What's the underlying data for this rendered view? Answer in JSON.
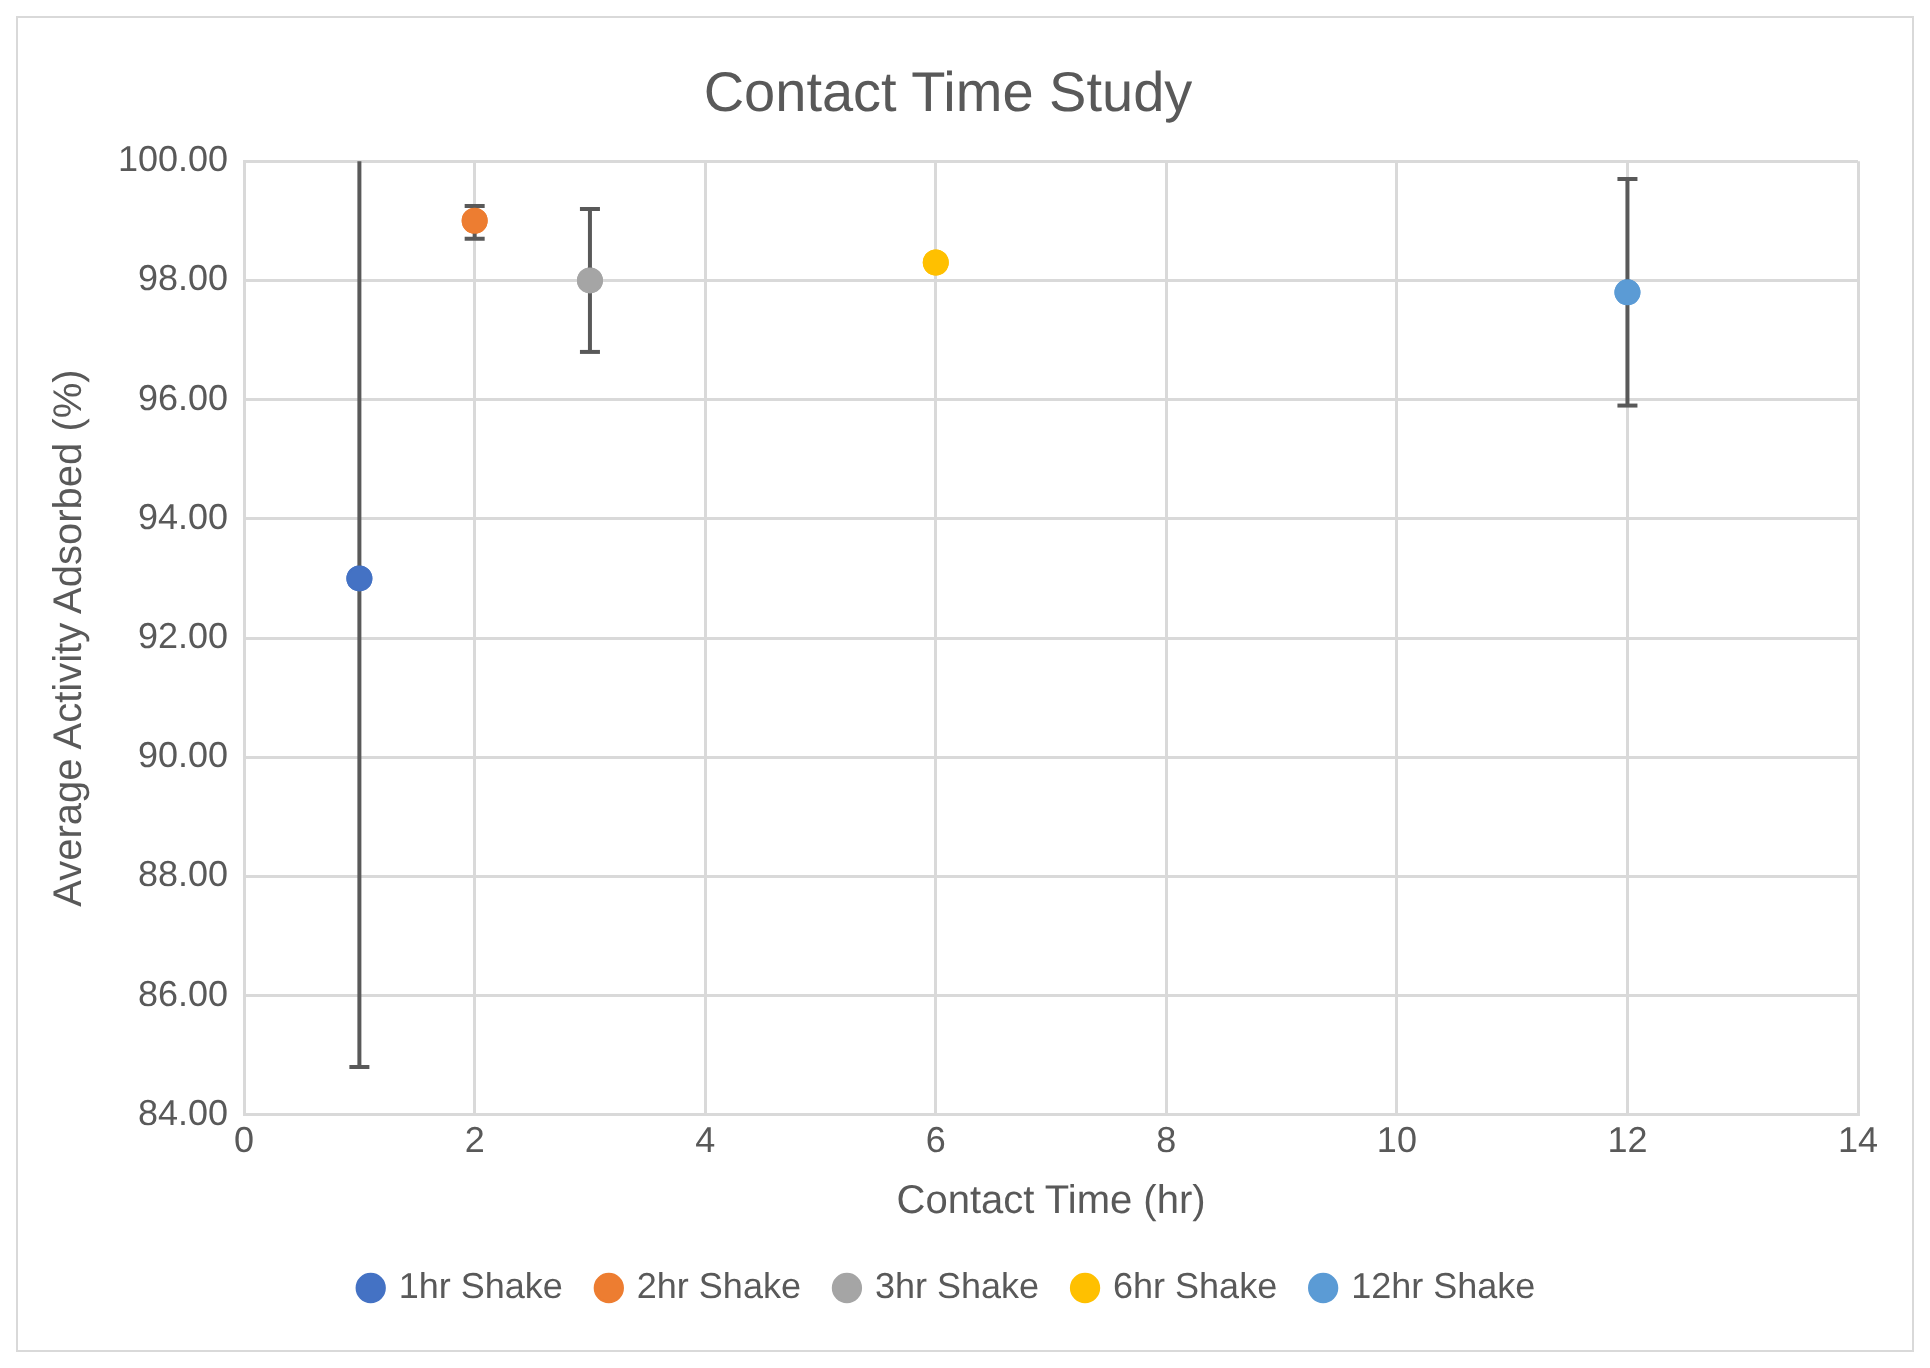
{
  "chart_data": {
    "type": "scatter",
    "title": "Contact Time Study",
    "xlabel": "Contact Time (hr)",
    "ylabel": "Average Activity Adsorbed (%)",
    "xlim": [
      0,
      14
    ],
    "xticks": [
      0,
      2,
      4,
      6,
      8,
      10,
      12,
      14
    ],
    "ylim": [
      84,
      100
    ],
    "yticks": [
      {
        "value": 84,
        "label": "84.00"
      },
      {
        "value": 86,
        "label": "86.00"
      },
      {
        "value": 88,
        "label": "88.00"
      },
      {
        "value": 90,
        "label": "90.00"
      },
      {
        "value": 92,
        "label": "92.00"
      },
      {
        "value": 94,
        "label": "94.00"
      },
      {
        "value": 96,
        "label": "96.00"
      },
      {
        "value": 98,
        "label": "98.00"
      },
      {
        "value": 100,
        "label": "100.00"
      }
    ],
    "grid": true,
    "legend": "bottom",
    "marker": "circle",
    "series": [
      {
        "name": "1hr Shake",
        "color": "#4472c4",
        "x": [
          1
        ],
        "values": [
          93.0
        ],
        "errors": [
          [
            84.8,
            100
          ]
        ]
      },
      {
        "name": "2hr Shake",
        "color": "#ed7d31",
        "x": [
          2
        ],
        "values": [
          99.0
        ],
        "errors": [
          [
            98.7,
            99.25
          ]
        ]
      },
      {
        "name": "3hr Shake",
        "color": "#a5a5a5",
        "x": [
          3
        ],
        "values": [
          98.0
        ],
        "errors": [
          [
            96.8,
            99.2
          ]
        ]
      },
      {
        "name": "6hr Shake",
        "color": "#ffc000",
        "x": [
          6
        ],
        "values": [
          98.3
        ]
      },
      {
        "name": "12hr Shake",
        "color": "#5b9bd5",
        "x": [
          12
        ],
        "values": [
          97.8
        ],
        "errors": [
          [
            95.9,
            99.7
          ]
        ]
      }
    ]
  }
}
